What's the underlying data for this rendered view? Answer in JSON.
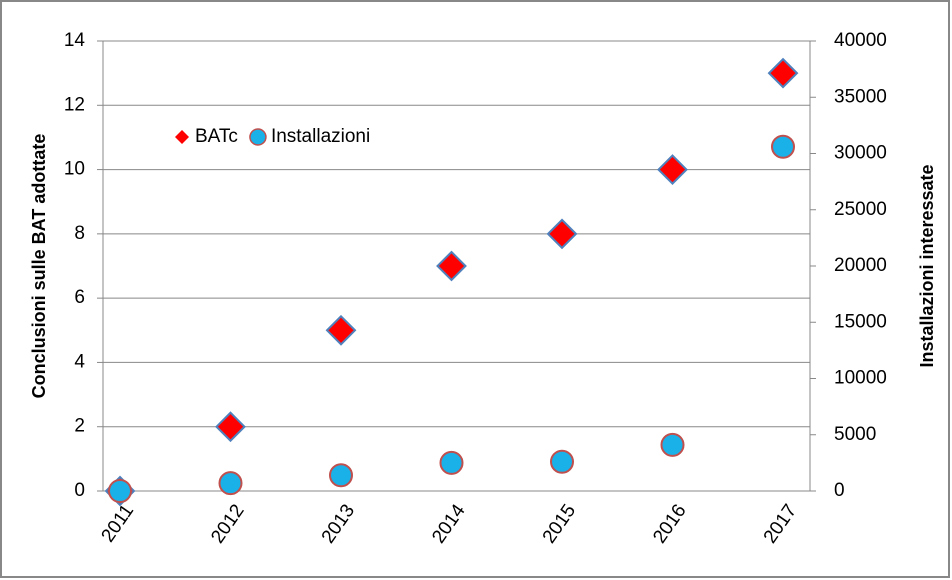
{
  "chart_data": {
    "type": "scatter",
    "categories": [
      "2011",
      "2012",
      "2013",
      "2014",
      "2015",
      "2016",
      "2017"
    ],
    "y_label": "Conclusioni sulle BAT adottate",
    "y2_label": "Installazioni interessate",
    "ylim": [
      0,
      14
    ],
    "yticks": [
      0,
      2,
      4,
      6,
      8,
      10,
      12,
      14
    ],
    "y2lim": [
      0,
      40000
    ],
    "y2ticks": [
      0,
      5000,
      10000,
      15000,
      20000,
      25000,
      30000,
      35000,
      40000
    ],
    "grid": true,
    "legend": "upper-left",
    "series": [
      {
        "name": "BATc",
        "color": "#ff0000",
        "marker": "diamond",
        "values": [
          0,
          2,
          5,
          7,
          8,
          10,
          13
        ]
      },
      {
        "name": "Installazioni",
        "color": "#1ab0e8",
        "marker": "circle",
        "axis": "y2",
        "values": [
          0,
          700,
          1400,
          2500,
          2600,
          4100,
          30600
        ]
      }
    ]
  }
}
